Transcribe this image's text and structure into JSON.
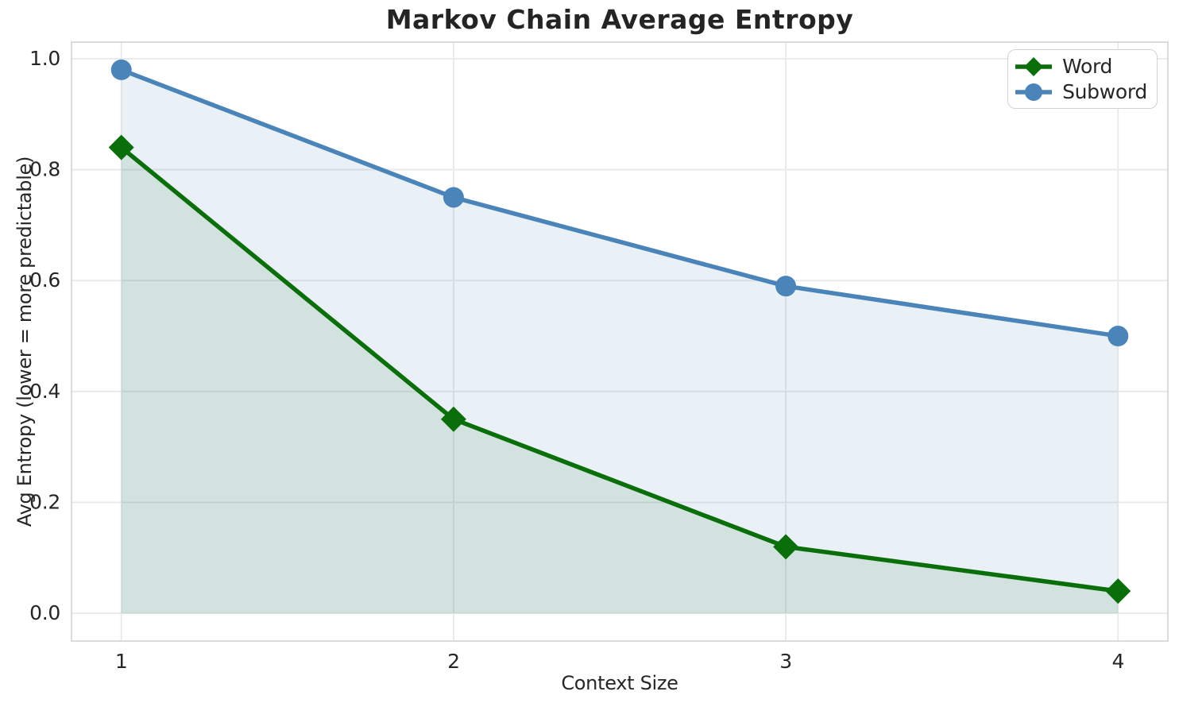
{
  "title": "Markov Chain Average Entropy",
  "chart_data": {
    "type": "line",
    "title": "Markov Chain Average Entropy",
    "xlabel": "Context Size",
    "ylabel": "Avg Entropy (lower = more predictable)",
    "x": [
      1,
      2,
      3,
      4
    ],
    "series": [
      {
        "name": "Word",
        "marker": "diamond",
        "color": "#0a6e0a",
        "fill": "rgba(0,110,0,0.10)",
        "values": [
          0.84,
          0.35,
          0.12,
          0.04
        ]
      },
      {
        "name": "Subword",
        "marker": "circle",
        "color": "#4a84b8",
        "fill": "rgba(70,130,180,0.12)",
        "values": [
          0.98,
          0.75,
          0.59,
          0.5
        ]
      }
    ],
    "xticks": [
      1,
      2,
      3,
      4
    ],
    "xtick_labels": [
      "1",
      "2",
      "3",
      "4"
    ],
    "yticks": [
      0.0,
      0.2,
      0.4,
      0.6,
      0.8,
      1.0
    ],
    "ytick_labels": [
      "0.0",
      "0.2",
      "0.4",
      "0.6",
      "0.8",
      "1.0"
    ],
    "xlim": [
      0.85,
      4.15
    ],
    "ylim": [
      -0.05,
      1.03
    ],
    "grid": true,
    "legend_position": "upper right",
    "grid_color": "#e9e9e9",
    "spine_color": "#cfcfcf",
    "text_color": "#262626"
  }
}
